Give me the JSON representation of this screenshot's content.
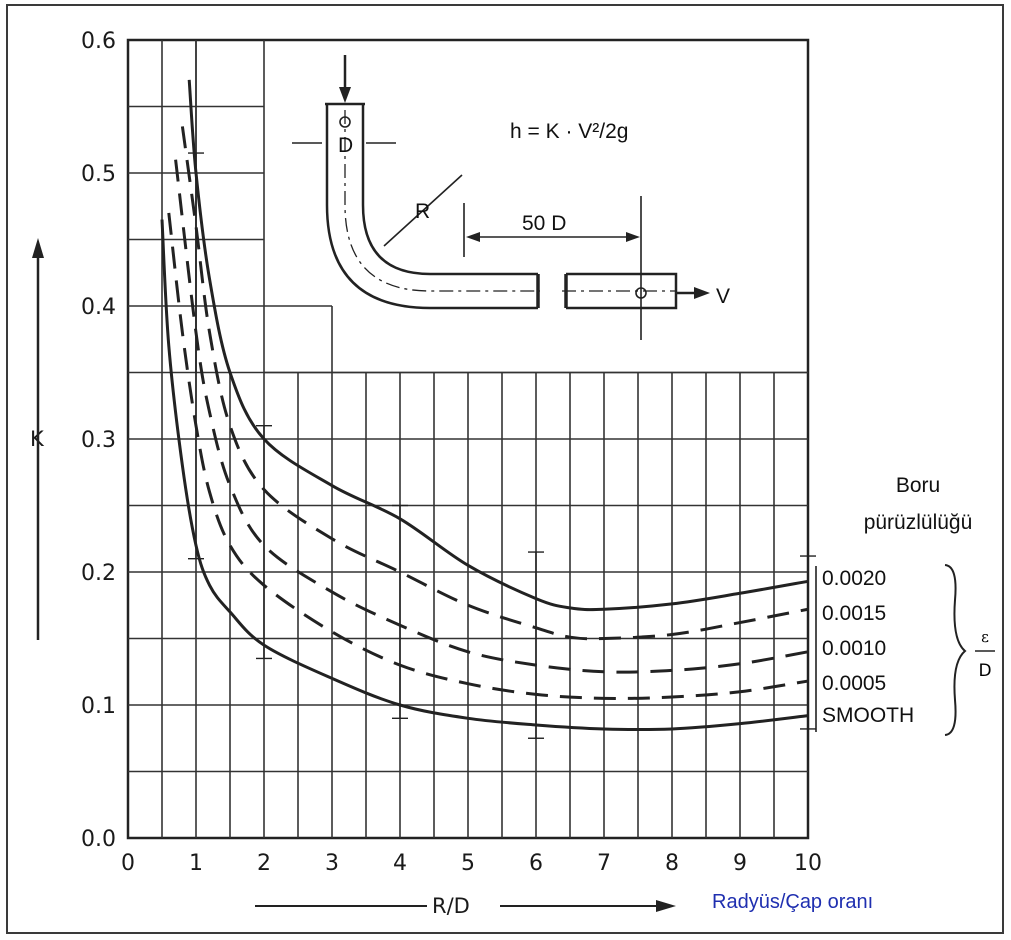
{
  "chart_data": {
    "type": "line",
    "xlabel": "R/D",
    "ylabel": "K",
    "xlim": [
      0,
      10
    ],
    "ylim": [
      0.0,
      0.6
    ],
    "x_ticks": [
      "0",
      "1",
      "2",
      "3",
      "4",
      "5",
      "6",
      "7",
      "8",
      "9",
      "10"
    ],
    "y_ticks": [
      "0.0",
      "0.1",
      "0.2",
      "0.3",
      "0.4",
      "0.5",
      "0.6"
    ],
    "grid": true,
    "x_axis_note": "Radyüs/Çap oranı",
    "legend_title": "Boru pürüzlülüğü",
    "legend_bracket_label": "ε/D",
    "formula": "h = K · V²/2g",
    "inset_labels": {
      "diameter": "D",
      "radius": "R",
      "length": "50 D",
      "velocity": "V"
    },
    "series": [
      {
        "name": "0.0020",
        "style": "solid",
        "x": [
          0.9,
          1.0,
          1.2,
          1.5,
          2.0,
          3.0,
          4.0,
          5.0,
          6.0,
          6.5,
          7.0,
          8.0,
          9.0,
          10.0
        ],
        "y": [
          0.57,
          0.5,
          0.42,
          0.35,
          0.3,
          0.265,
          0.24,
          0.205,
          0.18,
          0.173,
          0.172,
          0.176,
          0.184,
          0.193
        ]
      },
      {
        "name": "0.0015",
        "style": "dashed",
        "x": [
          0.8,
          1.0,
          1.2,
          1.5,
          2.0,
          3.0,
          4.0,
          5.0,
          6.0,
          6.5,
          7.0,
          8.0,
          9.0,
          10.0
        ],
        "y": [
          0.535,
          0.46,
          0.38,
          0.31,
          0.262,
          0.225,
          0.2,
          0.175,
          0.158,
          0.151,
          0.15,
          0.153,
          0.162,
          0.172
        ]
      },
      {
        "name": "0.0010",
        "style": "dashed",
        "x": [
          0.7,
          1.0,
          1.2,
          1.5,
          2.0,
          3.0,
          4.0,
          5.0,
          6.0,
          7.0,
          8.0,
          9.0,
          10.0
        ],
        "y": [
          0.51,
          0.38,
          0.32,
          0.265,
          0.22,
          0.185,
          0.16,
          0.14,
          0.13,
          0.125,
          0.126,
          0.131,
          0.14
        ]
      },
      {
        "name": "0.0005",
        "style": "dashed",
        "x": [
          0.6,
          0.8,
          1.0,
          1.2,
          1.5,
          2.0,
          3.0,
          4.0,
          5.0,
          6.0,
          7.0,
          8.0,
          9.0,
          10.0
        ],
        "y": [
          0.47,
          0.38,
          0.31,
          0.26,
          0.22,
          0.19,
          0.155,
          0.13,
          0.116,
          0.108,
          0.105,
          0.106,
          0.11,
          0.118
        ]
      },
      {
        "name": "SMOOTH",
        "style": "solid",
        "x": [
          0.5,
          0.6,
          0.8,
          1.0,
          1.2,
          1.5,
          2.0,
          3.0,
          4.0,
          5.0,
          6.0,
          7.0,
          8.0,
          9.0,
          10.0
        ],
        "y": [
          0.465,
          0.37,
          0.28,
          0.22,
          0.19,
          0.17,
          0.145,
          0.12,
          0.1,
          0.09,
          0.085,
          0.082,
          0.082,
          0.086,
          0.092
        ]
      }
    ],
    "error_bars": [
      {
        "x": 1.0,
        "y": [
          0.515,
          0.21
        ]
      },
      {
        "x": 2.0,
        "y": [
          0.31,
          0.135
        ]
      },
      {
        "x": 4.0,
        "y": [
          0.25,
          0.09
        ]
      },
      {
        "x": 6.0,
        "y": [
          0.215,
          0.075
        ]
      },
      {
        "x": 10.0,
        "y": [
          0.212,
          0.082
        ]
      }
    ]
  }
}
